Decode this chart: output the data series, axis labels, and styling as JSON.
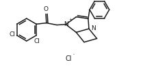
{
  "bg_color": "#ffffff",
  "line_color": "#1a1a1a",
  "line_width": 1.1,
  "font_size": 6.5,
  "fig_width": 2.12,
  "fig_height": 1.01,
  "dpi": 100,
  "xlim": [
    0,
    10
  ],
  "ylim": [
    0,
    4.78
  ],
  "Cl_ion_text": "Cl",
  "O_text": "O",
  "N_text": "N",
  "Cl_text": "Cl",
  "plus_text": "+",
  "minus_text": "-"
}
